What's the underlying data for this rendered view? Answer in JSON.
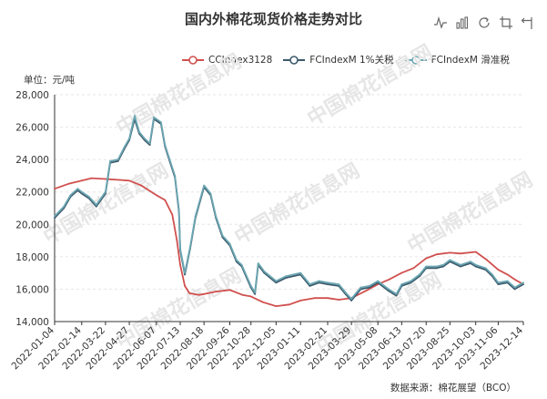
{
  "title": "国内外棉花现货价格走势对比",
  "unit_label": "单位：元/吨",
  "source_label": "数据来源：棉花展望（BCO）",
  "watermark_text": "中国棉花信息网",
  "toolbox": [
    {
      "name": "line-view-icon"
    },
    {
      "name": "bar-view-icon"
    },
    {
      "name": "refresh-icon"
    },
    {
      "name": "zoom-icon"
    },
    {
      "name": "zoom-reset-icon"
    }
  ],
  "colors": {
    "cc": "#d0504e",
    "fc1": "#3c5a6b",
    "fc2": "#6aa6b2",
    "axis": "#333333",
    "grid": "#e6e6e6"
  },
  "chart_data": {
    "type": "line",
    "title": "国内外棉花现货价格走势对比",
    "ylabel": "单位：元/吨",
    "ylim": [
      14000,
      28000
    ],
    "yticks": [
      "14,000",
      "16,000",
      "18,000",
      "20,000",
      "22,000",
      "24,000",
      "26,000",
      "28,000"
    ],
    "ytick_values": [
      14000,
      16000,
      18000,
      20000,
      22000,
      24000,
      26000,
      28000
    ],
    "xticks": [
      "2022-01-04",
      "2022-02-14",
      "2022-03-22",
      "2022-04-27",
      "2022-06-07",
      "2022-07-13",
      "2022-08-18",
      "2022-09-26",
      "2022-10-28",
      "2022-12-05",
      "2023-01-11",
      "2023-02-21",
      "2023-03-29",
      "2023-05-08",
      "2023-06-13",
      "2023-07-20",
      "2023-08-25",
      "2023-10-03",
      "2023-11-06",
      "2023-12-14"
    ],
    "x_range": [
      "2022-01-04",
      "2023-12-14"
    ],
    "grid": true,
    "legend_position": "top",
    "series": [
      {
        "name": "CCIndex3128",
        "color": "#d0504e",
        "points": [
          [
            "2022-01-04",
            22200
          ],
          [
            "2022-01-25",
            22500
          ],
          [
            "2022-02-14",
            22700
          ],
          [
            "2022-03-01",
            22850
          ],
          [
            "2022-03-22",
            22800
          ],
          [
            "2022-04-10",
            22750
          ],
          [
            "2022-04-27",
            22700
          ],
          [
            "2022-05-15",
            22400
          ],
          [
            "2022-06-07",
            21800
          ],
          [
            "2022-06-20",
            21500
          ],
          [
            "2022-07-01",
            20600
          ],
          [
            "2022-07-08",
            19000
          ],
          [
            "2022-07-13",
            17500
          ],
          [
            "2022-07-20",
            16200
          ],
          [
            "2022-07-27",
            15750
          ],
          [
            "2022-08-10",
            15650
          ],
          [
            "2022-08-18",
            15700
          ],
          [
            "2022-09-05",
            15850
          ],
          [
            "2022-09-26",
            15950
          ],
          [
            "2022-10-15",
            15650
          ],
          [
            "2022-10-28",
            15550
          ],
          [
            "2022-11-15",
            15200
          ],
          [
            "2022-12-05",
            14950
          ],
          [
            "2022-12-25",
            15050
          ],
          [
            "2023-01-11",
            15300
          ],
          [
            "2023-02-01",
            15450
          ],
          [
            "2023-02-21",
            15450
          ],
          [
            "2023-03-10",
            15350
          ],
          [
            "2023-03-29",
            15450
          ],
          [
            "2023-04-20",
            15900
          ],
          [
            "2023-05-08",
            16300
          ],
          [
            "2023-05-25",
            16600
          ],
          [
            "2023-06-13",
            17000
          ],
          [
            "2023-07-01",
            17300
          ],
          [
            "2023-07-20",
            17900
          ],
          [
            "2023-08-05",
            18150
          ],
          [
            "2023-08-25",
            18250
          ],
          [
            "2023-09-10",
            18200
          ],
          [
            "2023-10-03",
            18300
          ],
          [
            "2023-10-20",
            17800
          ],
          [
            "2023-11-06",
            17200
          ],
          [
            "2023-11-20",
            16900
          ],
          [
            "2023-12-01",
            16600
          ],
          [
            "2023-12-14",
            16300
          ]
        ]
      },
      {
        "name": "FCIndexM 1%关税",
        "color": "#3c5a6b",
        "points": [
          [
            "2022-01-04",
            20400
          ],
          [
            "2022-01-18",
            21000
          ],
          [
            "2022-01-28",
            21700
          ],
          [
            "2022-02-08",
            22100
          ],
          [
            "2022-02-14",
            21900
          ],
          [
            "2022-02-25",
            21600
          ],
          [
            "2022-03-08",
            21100
          ],
          [
            "2022-03-22",
            21900
          ],
          [
            "2022-03-29",
            23800
          ],
          [
            "2022-04-10",
            23900
          ],
          [
            "2022-04-20",
            24700
          ],
          [
            "2022-04-27",
            25200
          ],
          [
            "2022-05-05",
            26500
          ],
          [
            "2022-05-12",
            25600
          ],
          [
            "2022-05-20",
            25200
          ],
          [
            "2022-05-28",
            24900
          ],
          [
            "2022-06-03",
            26500
          ],
          [
            "2022-06-07",
            26400
          ],
          [
            "2022-06-14",
            26200
          ],
          [
            "2022-06-20",
            24800
          ],
          [
            "2022-06-27",
            23900
          ],
          [
            "2022-07-05",
            22900
          ],
          [
            "2022-07-11",
            20800
          ],
          [
            "2022-07-13",
            18400
          ],
          [
            "2022-07-20",
            16900
          ],
          [
            "2022-07-28",
            18500
          ],
          [
            "2022-08-05",
            20400
          ],
          [
            "2022-08-18",
            22300
          ],
          [
            "2022-08-28",
            21800
          ],
          [
            "2022-09-05",
            20400
          ],
          [
            "2022-09-15",
            19200
          ],
          [
            "2022-09-26",
            18700
          ],
          [
            "2022-10-06",
            17700
          ],
          [
            "2022-10-14",
            17400
          ],
          [
            "2022-10-28",
            16100
          ],
          [
            "2022-11-03",
            15700
          ],
          [
            "2022-11-08",
            17500
          ],
          [
            "2022-11-17",
            17000
          ],
          [
            "2022-12-05",
            16400
          ],
          [
            "2022-12-20",
            16700
          ],
          [
            "2023-01-11",
            16900
          ],
          [
            "2023-01-25",
            16200
          ],
          [
            "2023-02-08",
            16400
          ],
          [
            "2023-02-21",
            16300
          ],
          [
            "2023-03-10",
            16200
          ],
          [
            "2023-03-20",
            15700
          ],
          [
            "2023-03-29",
            15300
          ],
          [
            "2023-04-12",
            16000
          ],
          [
            "2023-04-25",
            16100
          ],
          [
            "2023-05-08",
            16400
          ],
          [
            "2023-05-24",
            15900
          ],
          [
            "2023-06-05",
            15600
          ],
          [
            "2023-06-13",
            16200
          ],
          [
            "2023-06-27",
            16400
          ],
          [
            "2023-07-10",
            16800
          ],
          [
            "2023-07-20",
            17300
          ],
          [
            "2023-08-05",
            17300
          ],
          [
            "2023-08-15",
            17400
          ],
          [
            "2023-08-25",
            17700
          ],
          [
            "2023-09-10",
            17400
          ],
          [
            "2023-09-25",
            17600
          ],
          [
            "2023-10-03",
            17400
          ],
          [
            "2023-10-18",
            17200
          ],
          [
            "2023-10-28",
            16800
          ],
          [
            "2023-11-06",
            16300
          ],
          [
            "2023-11-20",
            16400
          ],
          [
            "2023-12-01",
            16000
          ],
          [
            "2023-12-14",
            16300
          ]
        ]
      },
      {
        "name": "FCIndexM 滑准税",
        "color": "#6aa6b2",
        "points": [
          [
            "2022-01-04",
            20500
          ],
          [
            "2022-01-18",
            21100
          ],
          [
            "2022-01-28",
            21800
          ],
          [
            "2022-02-08",
            22200
          ],
          [
            "2022-02-14",
            22000
          ],
          [
            "2022-02-25",
            21700
          ],
          [
            "2022-03-08",
            21200
          ],
          [
            "2022-03-22",
            22000
          ],
          [
            "2022-03-29",
            23900
          ],
          [
            "2022-04-10",
            24000
          ],
          [
            "2022-04-20",
            24800
          ],
          [
            "2022-04-27",
            25300
          ],
          [
            "2022-05-05",
            26700
          ],
          [
            "2022-05-12",
            25700
          ],
          [
            "2022-05-20",
            25300
          ],
          [
            "2022-05-28",
            25000
          ],
          [
            "2022-06-03",
            26600
          ],
          [
            "2022-06-07",
            26500
          ],
          [
            "2022-06-14",
            26300
          ],
          [
            "2022-06-20",
            24900
          ],
          [
            "2022-06-27",
            24000
          ],
          [
            "2022-07-05",
            23000
          ],
          [
            "2022-07-11",
            20900
          ],
          [
            "2022-07-13",
            18500
          ],
          [
            "2022-07-20",
            17000
          ],
          [
            "2022-07-28",
            18600
          ],
          [
            "2022-08-05",
            20500
          ],
          [
            "2022-08-18",
            22400
          ],
          [
            "2022-08-28",
            21900
          ],
          [
            "2022-09-05",
            20500
          ],
          [
            "2022-09-15",
            19300
          ],
          [
            "2022-09-26",
            18800
          ],
          [
            "2022-10-06",
            17800
          ],
          [
            "2022-10-14",
            17500
          ],
          [
            "2022-10-28",
            16200
          ],
          [
            "2022-11-03",
            15800
          ],
          [
            "2022-11-08",
            17600
          ],
          [
            "2022-11-17",
            17100
          ],
          [
            "2022-12-05",
            16500
          ],
          [
            "2022-12-20",
            16800
          ],
          [
            "2023-01-11",
            17000
          ],
          [
            "2023-01-25",
            16300
          ],
          [
            "2023-02-08",
            16500
          ],
          [
            "2023-02-21",
            16400
          ],
          [
            "2023-03-10",
            16300
          ],
          [
            "2023-03-20",
            15800
          ],
          [
            "2023-03-29",
            15400
          ],
          [
            "2023-04-12",
            16100
          ],
          [
            "2023-04-25",
            16200
          ],
          [
            "2023-05-08",
            16500
          ],
          [
            "2023-05-24",
            16000
          ],
          [
            "2023-06-05",
            15700
          ],
          [
            "2023-06-13",
            16300
          ],
          [
            "2023-06-27",
            16500
          ],
          [
            "2023-07-10",
            16900
          ],
          [
            "2023-07-20",
            17400
          ],
          [
            "2023-08-05",
            17400
          ],
          [
            "2023-08-15",
            17500
          ],
          [
            "2023-08-25",
            17800
          ],
          [
            "2023-09-10",
            17500
          ],
          [
            "2023-09-25",
            17700
          ],
          [
            "2023-10-03",
            17500
          ],
          [
            "2023-10-18",
            17300
          ],
          [
            "2023-10-28",
            16900
          ],
          [
            "2023-11-06",
            16400
          ],
          [
            "2023-11-20",
            16500
          ],
          [
            "2023-12-01",
            16100
          ],
          [
            "2023-12-14",
            16400
          ]
        ]
      }
    ]
  }
}
